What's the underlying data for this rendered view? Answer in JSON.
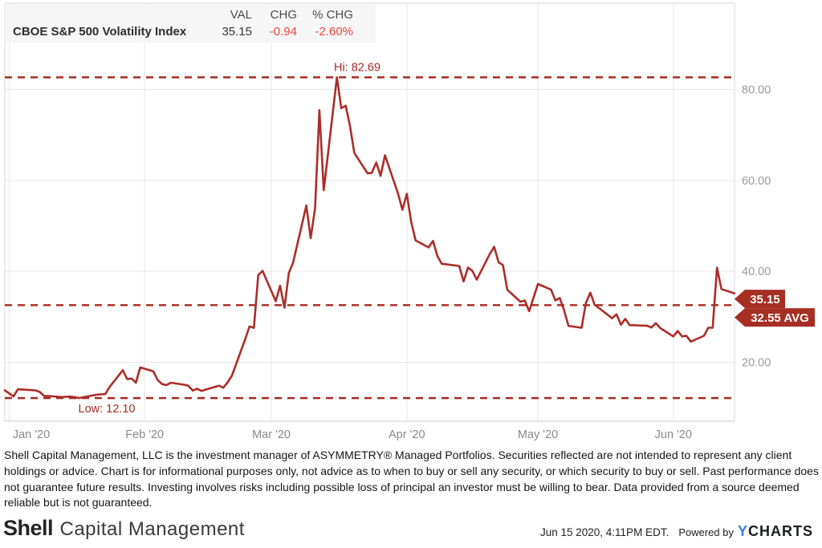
{
  "header": {
    "series_name": "CBOE S&P 500 Volatility Index",
    "columns": [
      "VAL",
      "CHG",
      "% CHG"
    ],
    "val": "35.15",
    "chg": "-0.94",
    "pct_chg": "-2.60%"
  },
  "chart_data": {
    "type": "line",
    "title": "CBOE S&P 500 Volatility Index",
    "grid": true,
    "legend_position": "top-left",
    "ylim": [
      7,
      99
    ],
    "y_ticks": [
      20,
      40,
      60,
      80
    ],
    "y_tick_labels": [
      "20.00",
      "40.00",
      "60.00",
      "80.00"
    ],
    "x_ticks": [
      {
        "date": "2020-01-01",
        "label": "Jan '20"
      },
      {
        "date": "2020-02-01",
        "label": "Feb '20"
      },
      {
        "date": "2020-03-01",
        "label": "Mar '20"
      },
      {
        "date": "2020-04-01",
        "label": "Apr '20"
      },
      {
        "date": "2020-05-01",
        "label": "May '20"
      },
      {
        "date": "2020-06-01",
        "label": "Jun '20"
      }
    ],
    "x_start": "2019-12-31",
    "x_end": "2020-06-15",
    "dates": [
      "2019-12-31",
      "2020-01-02",
      "2020-01-03",
      "2020-01-06",
      "2020-01-07",
      "2020-01-08",
      "2020-01-09",
      "2020-01-10",
      "2020-01-13",
      "2020-01-14",
      "2020-01-15",
      "2020-01-16",
      "2020-01-17",
      "2020-01-21",
      "2020-01-22",
      "2020-01-23",
      "2020-01-24",
      "2020-01-27",
      "2020-01-28",
      "2020-01-29",
      "2020-01-30",
      "2020-01-31",
      "2020-02-03",
      "2020-02-04",
      "2020-02-05",
      "2020-02-06",
      "2020-02-07",
      "2020-02-10",
      "2020-02-11",
      "2020-02-12",
      "2020-02-13",
      "2020-02-14",
      "2020-02-18",
      "2020-02-19",
      "2020-02-20",
      "2020-02-21",
      "2020-02-24",
      "2020-02-25",
      "2020-02-26",
      "2020-02-27",
      "2020-02-28",
      "2020-03-02",
      "2020-03-03",
      "2020-03-04",
      "2020-03-05",
      "2020-03-06",
      "2020-03-09",
      "2020-03-10",
      "2020-03-11",
      "2020-03-12",
      "2020-03-13",
      "2020-03-16",
      "2020-03-17",
      "2020-03-18",
      "2020-03-19",
      "2020-03-20",
      "2020-03-23",
      "2020-03-24",
      "2020-03-25",
      "2020-03-26",
      "2020-03-27",
      "2020-03-30",
      "2020-03-31",
      "2020-04-01",
      "2020-04-02",
      "2020-04-03",
      "2020-04-06",
      "2020-04-07",
      "2020-04-08",
      "2020-04-09",
      "2020-04-13",
      "2020-04-14",
      "2020-04-15",
      "2020-04-16",
      "2020-04-17",
      "2020-04-20",
      "2020-04-21",
      "2020-04-22",
      "2020-04-23",
      "2020-04-24",
      "2020-04-27",
      "2020-04-28",
      "2020-04-29",
      "2020-04-30",
      "2020-05-01",
      "2020-05-04",
      "2020-05-05",
      "2020-05-06",
      "2020-05-07",
      "2020-05-08",
      "2020-05-11",
      "2020-05-12",
      "2020-05-13",
      "2020-05-14",
      "2020-05-15",
      "2020-05-18",
      "2020-05-19",
      "2020-05-20",
      "2020-05-21",
      "2020-05-22",
      "2020-05-26",
      "2020-05-27",
      "2020-05-28",
      "2020-05-29",
      "2020-06-01",
      "2020-06-02",
      "2020-06-03",
      "2020-06-04",
      "2020-06-05",
      "2020-06-08",
      "2020-06-09",
      "2020-06-10",
      "2020-06-11",
      "2020-06-12",
      "2020-06-15"
    ],
    "values": [
      13.78,
      12.47,
      14.02,
      13.85,
      13.79,
      13.45,
      12.54,
      12.56,
      12.32,
      12.39,
      12.42,
      12.32,
      12.1,
      12.85,
      12.91,
      12.98,
      14.56,
      18.23,
      16.28,
      16.39,
      15.49,
      18.84,
      17.97,
      16.05,
      15.15,
      14.96,
      15.47,
      15.04,
      14.83,
      13.74,
      14.15,
      13.68,
      14.83,
      14.38,
      15.56,
      17.08,
      25.03,
      27.85,
      27.56,
      39.16,
      40.11,
      33.42,
      36.82,
      31.99,
      39.62,
      41.94,
      54.46,
      47.3,
      53.9,
      75.47,
      57.83,
      82.69,
      75.91,
      76.45,
      72.0,
      66.04,
      61.59,
      61.67,
      63.95,
      61.0,
      65.54,
      57.08,
      53.54,
      57.06,
      50.91,
      46.8,
      45.24,
      46.7,
      43.35,
      41.67,
      41.17,
      37.76,
      40.84,
      40.11,
      38.15,
      43.83,
      45.41,
      41.98,
      41.38,
      35.93,
      33.29,
      33.57,
      31.23,
      34.15,
      37.19,
      35.97,
      33.61,
      34.12,
      31.44,
      27.98,
      27.57,
      33.04,
      35.28,
      32.61,
      31.89,
      29.66,
      30.53,
      28.23,
      29.53,
      28.16,
      28.01,
      27.62,
      28.59,
      27.51,
      25.66,
      26.84,
      25.66,
      25.81,
      24.52,
      25.81,
      27.57,
      27.57,
      40.79,
      36.09,
      35.15
    ],
    "annotations": {
      "high": {
        "label": "Hi: 82.69",
        "value": 82.69
      },
      "low": {
        "label": "Low: 12.10",
        "value": 12.1
      },
      "avg": {
        "label": "32.55 AVG",
        "value": 32.55
      },
      "last": {
        "label": "35.15",
        "value": 35.15
      }
    },
    "colors": {
      "line": "#ac2d28",
      "dashed": "#a62a21",
      "badge_bg": "#a62e22",
      "badge_text": "#ffffff",
      "grid": "#e7e7e7",
      "plot_border": "#d9d9d9",
      "axis_bottom": "#cccccc",
      "y_label": "#9a9a9a",
      "x_label": "#8a8a8a"
    }
  },
  "disclaimer": "Shell Capital Management, LLC is the investment manager of ASYMMETRY® Managed Portfolios. Securities reflected are not intended to represent any client holdings or advice. Chart is for informational purposes only, not advice as to when to buy or sell any security, or which security to buy or sell. Past performance does not guarantee future results. Investing involves risks including possible loss of principal an investor must be willing to bear. Data provided from a source deemed reliable but is not guaranteed.",
  "footer": {
    "logo_bold": "Shell",
    "logo_rest": "Capital Management",
    "timestamp": "Jun 15 2020, 4:11PM EDT.",
    "powered_by": "Powered by",
    "ycharts_y": "Y",
    "ycharts_rest": "CHARTS"
  }
}
